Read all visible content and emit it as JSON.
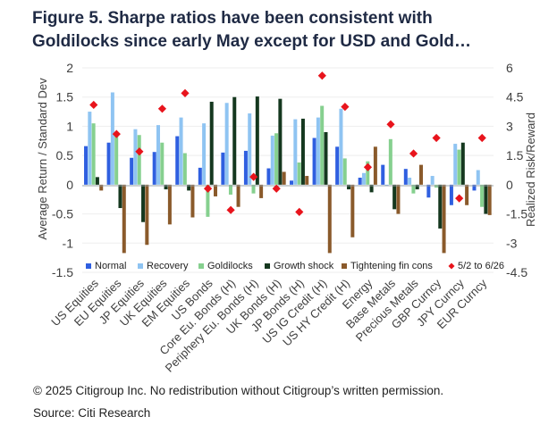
{
  "header": {
    "title_line1": "Figure 5. Sharpe ratios have been consistent with",
    "title_line2": "Goldilocks since early May except for USD and Gold…"
  },
  "footer": {
    "copyright": "© 2025 Citigroup Inc. No redistribution without Citigroup’s written permission.",
    "source": "Source: Citi Research"
  },
  "chart_data": {
    "type": "bar",
    "ylabel": "Average Return / Standard Dev",
    "y2label": "Realized Risk/Reward",
    "ylim": [
      -1.5,
      2
    ],
    "y2lim": [
      -4.5,
      6
    ],
    "yticks": [
      "2",
      "1.5",
      "1",
      "0.5",
      "0",
      "-0.5",
      "-1",
      "-1.5"
    ],
    "y2ticks": [
      "6",
      "4.5",
      "3",
      "1.5",
      "0",
      "-1.5",
      "-3",
      "-4.5"
    ],
    "categories": [
      "US Equities",
      "EU Equities",
      "JP Equities",
      "UK Equities",
      "EM Equities",
      "US Bonds",
      "Core Eu. Bonds (H)",
      "Periphery Eu. Bonds (H)",
      "UK Bonds (H)",
      "JP Bonds (H)",
      "US IG Credit (H)",
      "US HY Credit (H)",
      "Energy",
      "Base Metals",
      "Precious Metals",
      "GBP Curncy",
      "JPY Curncy",
      "EUR Curncy"
    ],
    "series": [
      {
        "name": "Normal",
        "color": "#2f5fe0",
        "values": [
          0.66,
          0.72,
          0.46,
          0.56,
          0.83,
          0.29,
          0.55,
          0.58,
          0.28,
          0.07,
          0.8,
          0.65,
          0.12,
          0.34,
          0.27,
          -0.22,
          -0.35,
          -0.1
        ]
      },
      {
        "name": "Recovery",
        "color": "#8fc4f2",
        "values": [
          1.25,
          1.58,
          0.95,
          1.02,
          1.15,
          1.05,
          1.4,
          1.22,
          0.84,
          1.12,
          1.15,
          1.3,
          0.2,
          -0.01,
          0.12,
          0.15,
          0.7,
          0.25
        ]
      },
      {
        "name": "Goldilocks",
        "color": "#86d08f",
        "values": [
          1.05,
          0.87,
          0.85,
          0.72,
          0.54,
          -0.55,
          -0.17,
          -0.15,
          0.88,
          0.38,
          1.35,
          0.45,
          0.4,
          0.78,
          -0.15,
          -0.05,
          0.6,
          -0.38
        ]
      },
      {
        "name": "Growth shock",
        "color": "#15381f",
        "values": [
          0.13,
          -0.4,
          -0.64,
          -0.08,
          -0.1,
          1.42,
          1.5,
          1.51,
          1.47,
          1.13,
          0.9,
          -0.08,
          -0.13,
          -0.42,
          -0.08,
          -0.75,
          0.72,
          -0.5
        ]
      },
      {
        "name": "Tightening fin cons",
        "color": "#8a5a2b",
        "values": [
          -0.1,
          -1.17,
          -1.03,
          -0.68,
          -0.56,
          -0.2,
          -0.38,
          -0.23,
          0.22,
          0.15,
          -1.17,
          -0.9,
          0.65,
          -0.5,
          0.34,
          -1.17,
          -0.35,
          -0.52
        ]
      },
      {
        "name": "5/2 to 6/26",
        "color": "#e8141c",
        "axis": "secondary",
        "marker": "diamond",
        "values": [
          4.1,
          2.6,
          1.7,
          3.9,
          4.7,
          -0.2,
          -1.3,
          0.4,
          -0.2,
          -1.4,
          5.6,
          4.0,
          0.9,
          3.1,
          1.6,
          2.4,
          -0.7,
          2.4
        ]
      }
    ]
  }
}
